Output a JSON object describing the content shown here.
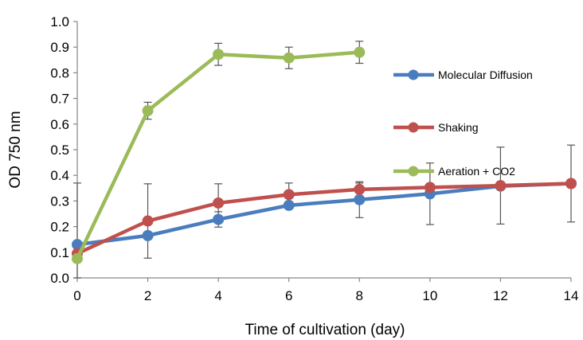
{
  "chart_data": {
    "type": "line",
    "title": "",
    "xlabel": "Time of cultivation (day)",
    "ylabel": "OD 750 nm",
    "xlim": [
      0,
      14
    ],
    "ylim": [
      0,
      1.0
    ],
    "x_ticks": [
      "0",
      "2",
      "4",
      "6",
      "8",
      "10",
      "12",
      "14"
    ],
    "y_ticks": [
      "0.0",
      "0.1",
      "0.2",
      "0.3",
      "0.4",
      "0.5",
      "0.6",
      "0.7",
      "0.8",
      "0.9",
      "1.0"
    ],
    "grid": false,
    "legend_position": "right",
    "series": [
      {
        "name": "Molecular Diffusion",
        "color": "#4a7dbe",
        "x": [
          0,
          2,
          4,
          6,
          8,
          10,
          12,
          14
        ],
        "y": [
          0.13,
          0.165,
          0.228,
          0.283,
          0.305,
          0.328,
          0.358,
          0.368
        ],
        "error": [
          0,
          0,
          0.03,
          0,
          0.07,
          0.12,
          0,
          0.15
        ]
      },
      {
        "name": "Shaking",
        "color": "#c0504d",
        "x": [
          0,
          2,
          4,
          6,
          8,
          10,
          12,
          14
        ],
        "y": [
          0.095,
          0.222,
          0.292,
          0.325,
          0.345,
          0.353,
          0.36,
          0.368
        ],
        "error": [
          0,
          0.145,
          0.075,
          0.045,
          0.025,
          0,
          0.15,
          0
        ]
      },
      {
        "name": "Aeration + CO2",
        "color": "#9bbb59",
        "x": [
          0,
          2,
          4,
          6,
          8
        ],
        "y": [
          0.075,
          0.652,
          0.872,
          0.858,
          0.88
        ],
        "error": [
          0.295,
          0.033,
          0.043,
          0.042,
          0.043
        ]
      }
    ]
  }
}
